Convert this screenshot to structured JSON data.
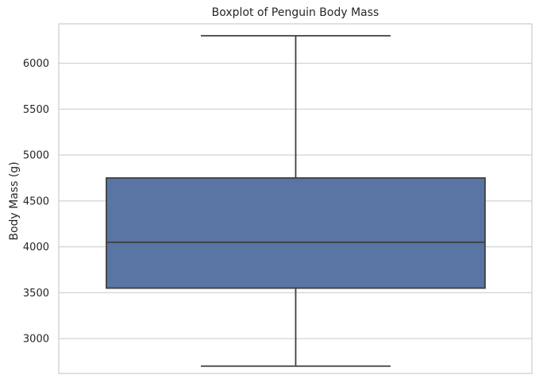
{
  "chart_data": {
    "type": "box",
    "title": "Boxplot of Penguin Body Mass",
    "xlabel": "",
    "ylabel": "Body Mass (g)",
    "ylim": [
      2620,
      6430
    ],
    "yticks": [
      3000,
      3500,
      4000,
      4500,
      5000,
      5500,
      6000
    ],
    "grid": true,
    "box": {
      "whisker_low": 2700,
      "q1": 3550,
      "median": 4050,
      "q3": 4750,
      "whisker_high": 6300
    },
    "colors": {
      "box_fill": "#5875a4",
      "line": "#3f3f3f",
      "grid": "#d3d3d3",
      "spine": "#cccccc"
    }
  }
}
